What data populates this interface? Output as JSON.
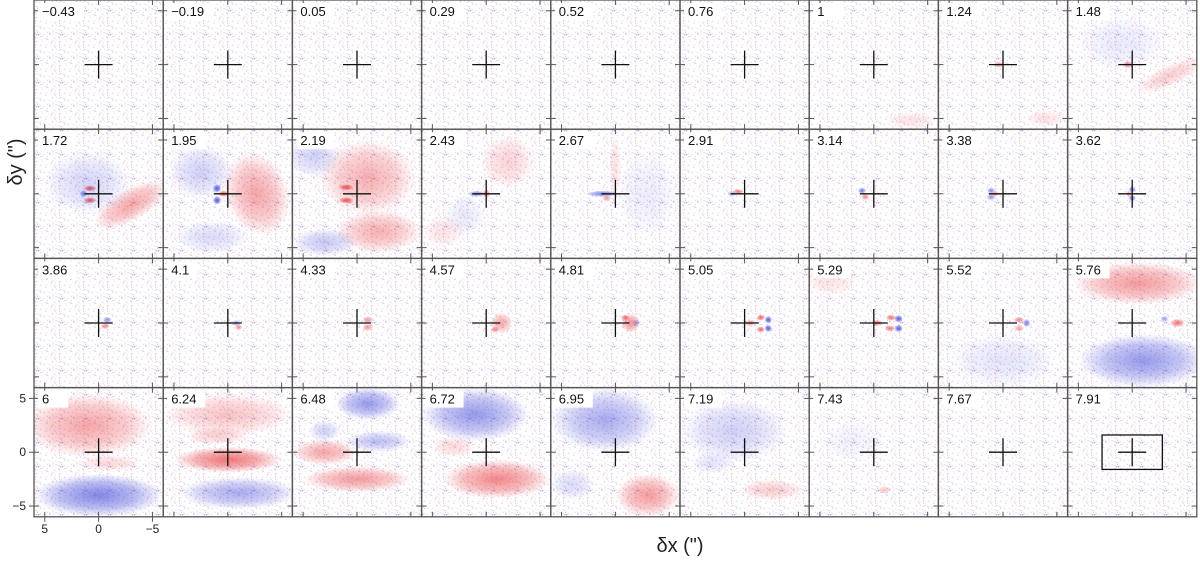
{
  "chart_data": {
    "type": "heatmap",
    "title": "",
    "description_units": "channel-map grid of residual panels",
    "rows": 4,
    "cols": 9,
    "xlabel": "δx (\")",
    "ylabel": "δy (\")",
    "xlim": [
      6,
      -6
    ],
    "ylim": [
      -6,
      6
    ],
    "x_ticks": [
      5,
      0,
      -5
    ],
    "x_tick_labels": [
      "5",
      "0",
      "−5"
    ],
    "y_ticks": [
      5,
      0,
      -5
    ],
    "y_tick_labels": [
      "5",
      "0",
      "−5"
    ],
    "colormap": {
      "positive": "#e8383c",
      "negative": "#3f46d8",
      "zero": "#ffffff"
    },
    "panel_labels": [
      "−0.43",
      "−0.19",
      "0.05",
      "0.29",
      "0.52",
      "0.76",
      "1",
      "1.24",
      "1.48",
      "1.72",
      "1.95",
      "2.19",
      "2.43",
      "2.67",
      "2.91",
      "3.14",
      "3.38",
      "3.62",
      "3.86",
      "4.1",
      "4.33",
      "4.57",
      "4.81",
      "5.05",
      "5.29",
      "5.52",
      "5.76",
      "6",
      "6.24",
      "6.48",
      "6.72",
      "6.95",
      "7.19",
      "7.43",
      "7.67",
      "7.91"
    ],
    "panel_values": [
      -0.43,
      -0.19,
      0.05,
      0.29,
      0.52,
      0.76,
      1,
      1.24,
      1.48,
      1.72,
      1.95,
      2.19,
      2.43,
      2.67,
      2.91,
      3.14,
      3.38,
      3.62,
      3.86,
      4.1,
      4.33,
      4.57,
      4.81,
      5.05,
      5.29,
      5.52,
      5.76,
      6,
      6.24,
      6.48,
      6.72,
      6.95,
      7.19,
      7.43,
      7.67,
      7.91
    ],
    "center_marker": {
      "x": 0,
      "y": 0,
      "half_length": 1.3
    },
    "beam_box": {
      "x_range": [
        2.8,
        -2.8
      ],
      "y_range": [
        -1.6,
        1.6
      ]
    },
    "blobs": [
      [],
      [],
      [],
      [],
      [],
      [],
      [
        {
          "x": -3.5,
          "y": -5.2,
          "rx": 2.5,
          "ry": 0.8,
          "a": 0.15
        }
      ],
      [
        {
          "x": 0.4,
          "y": 0,
          "rx": 0.5,
          "ry": 0.3,
          "a": 0.55
        },
        {
          "x": -4,
          "y": -5,
          "rx": 2,
          "ry": 0.8,
          "a": 0.15
        }
      ],
      [
        {
          "x": 0.4,
          "y": 0,
          "rx": 0.5,
          "ry": 0.35,
          "a": 0.6
        },
        {
          "x": -3.5,
          "y": -1,
          "rx": 3.5,
          "ry": 1,
          "a": 0.25,
          "rot": -25
        },
        {
          "x": 1,
          "y": 2,
          "rx": 4,
          "ry": 2.5,
          "a": -0.12
        }
      ],
      [
        {
          "x": 0.8,
          "y": 0.5,
          "rx": 0.6,
          "ry": 0.3,
          "a": 0.9
        },
        {
          "x": 0.8,
          "y": -0.6,
          "rx": 0.6,
          "ry": 0.3,
          "a": 0.9
        },
        {
          "x": 1.4,
          "y": 0,
          "rx": 0.35,
          "ry": 0.35,
          "a": -0.7
        },
        {
          "x": -3,
          "y": -1,
          "rx": 3.8,
          "ry": 1.5,
          "a": 0.45,
          "rot": -30
        },
        {
          "x": 1,
          "y": 1,
          "rx": 4,
          "ry": 3,
          "a": -0.22
        }
      ],
      [
        {
          "x": 1,
          "y": 0.5,
          "rx": 0.4,
          "ry": 0.4,
          "a": -0.9
        },
        {
          "x": 1,
          "y": -0.6,
          "rx": 0.4,
          "ry": 0.4,
          "a": -0.9
        },
        {
          "x": 0.4,
          "y": 0,
          "rx": 0.5,
          "ry": 0.3,
          "a": 0.8
        },
        {
          "x": -2.7,
          "y": 0,
          "rx": 3,
          "ry": 4,
          "a": 0.45,
          "rot": -20
        },
        {
          "x": 2.5,
          "y": 2,
          "rx": 3,
          "ry": 2.5,
          "a": -0.25
        },
        {
          "x": 1.5,
          "y": -4,
          "rx": 3.5,
          "ry": 1.5,
          "a": -0.2
        }
      ],
      [
        {
          "x": 1,
          "y": 0.6,
          "rx": 0.7,
          "ry": 0.3,
          "a": 0.85
        },
        {
          "x": 1,
          "y": -0.6,
          "rx": 0.7,
          "ry": 0.3,
          "a": 0.85
        },
        {
          "x": -1,
          "y": 1.5,
          "rx": 4.5,
          "ry": 3.5,
          "a": 0.4
        },
        {
          "x": -2,
          "y": -3.5,
          "rx": 4,
          "ry": 2,
          "a": 0.4
        },
        {
          "x": 4,
          "y": 3.5,
          "rx": 2.5,
          "ry": 2,
          "a": -0.25
        },
        {
          "x": 3,
          "y": -4.5,
          "rx": 3,
          "ry": 1.3,
          "a": -0.3
        }
      ],
      [
        {
          "x": 0.9,
          "y": 0,
          "rx": 0.8,
          "ry": 0.3,
          "a": -0.6
        },
        {
          "x": 0,
          "y": 0,
          "rx": 0.4,
          "ry": 0.4,
          "a": 0.6
        },
        {
          "x": -2,
          "y": 3,
          "rx": 2.5,
          "ry": 2.5,
          "a": 0.22
        },
        {
          "x": 4,
          "y": -3.5,
          "rx": 2,
          "ry": 1.5,
          "a": 0.15
        },
        {
          "x": 2,
          "y": -2,
          "rx": 2,
          "ry": 2,
          "a": -0.12
        }
      ],
      [
        {
          "x": 1.2,
          "y": 0,
          "rx": 1.5,
          "ry": 0.3,
          "a": -0.7
        },
        {
          "x": 0.8,
          "y": -0.4,
          "rx": 0.4,
          "ry": 0.3,
          "a": 0.5
        },
        {
          "x": 0,
          "y": 2.5,
          "rx": 0.6,
          "ry": 3,
          "a": 0.15
        },
        {
          "x": -3,
          "y": 0,
          "rx": 3,
          "ry": 4,
          "a": -0.1
        }
      ],
      [
        {
          "x": 0.6,
          "y": 0.2,
          "rx": 0.5,
          "ry": 0.25,
          "a": 0.7
        },
        {
          "x": 1.2,
          "y": 0,
          "rx": 0.4,
          "ry": 0.3,
          "a": -0.4
        }
      ],
      [
        {
          "x": 1.1,
          "y": 0.3,
          "rx": 0.4,
          "ry": 0.3,
          "a": -0.7
        },
        {
          "x": 0.8,
          "y": -0.3,
          "rx": 0.4,
          "ry": 0.3,
          "a": 0.6
        }
      ],
      [
        {
          "x": 1.1,
          "y": 0.3,
          "rx": 0.4,
          "ry": 0.3,
          "a": -0.6
        },
        {
          "x": 1.1,
          "y": -0.3,
          "rx": 0.4,
          "ry": 0.3,
          "a": -0.6
        },
        {
          "x": 0.7,
          "y": 0,
          "rx": 0.3,
          "ry": 0.3,
          "a": 0.5
        }
      ],
      [
        {
          "x": 0,
          "y": 0.4,
          "rx": 0.35,
          "ry": 0.3,
          "a": -0.7
        },
        {
          "x": 0,
          "y": -0.4,
          "rx": 0.35,
          "ry": 0.3,
          "a": -0.7
        },
        {
          "x": 0.3,
          "y": 0,
          "rx": 0.3,
          "ry": 0.3,
          "a": 0.5
        }
      ],
      [
        {
          "x": -0.8,
          "y": 0.3,
          "rx": 0.4,
          "ry": 0.3,
          "a": -0.6
        },
        {
          "x": -0.6,
          "y": -0.3,
          "rx": 0.4,
          "ry": 0.3,
          "a": 0.6
        }
      ],
      [
        {
          "x": -0.8,
          "y": 0,
          "rx": 0.4,
          "ry": 0.3,
          "a": -0.5
        },
        {
          "x": -1,
          "y": -0.4,
          "rx": 0.4,
          "ry": 0.3,
          "a": 0.5
        }
      ],
      [
        {
          "x": -1,
          "y": 0.3,
          "rx": 0.5,
          "ry": 0.35,
          "a": 0.5
        },
        {
          "x": -1,
          "y": -0.4,
          "rx": 0.5,
          "ry": 0.35,
          "a": 0.5
        }
      ],
      [
        {
          "x": -1.4,
          "y": 0,
          "rx": 1,
          "ry": 1,
          "a": 0.45
        },
        {
          "x": -0.8,
          "y": -0.6,
          "rx": 0.4,
          "ry": 0.3,
          "a": 0.6
        }
      ],
      [
        {
          "x": -1.4,
          "y": 0,
          "rx": 0.9,
          "ry": 0.9,
          "a": 0.55
        },
        {
          "x": -1.9,
          "y": 0,
          "rx": 0.35,
          "ry": 0.35,
          "a": -0.4
        },
        {
          "x": -0.9,
          "y": 0.5,
          "rx": 0.4,
          "ry": 0.3,
          "a": 0.7
        }
      ],
      [
        {
          "x": -1.5,
          "y": 0.5,
          "rx": 0.4,
          "ry": 0.3,
          "a": 0.8
        },
        {
          "x": -1.5,
          "y": -0.6,
          "rx": 0.4,
          "ry": 0.3,
          "a": 0.8
        },
        {
          "x": -2.2,
          "y": 0.3,
          "rx": 0.35,
          "ry": 0.35,
          "a": -0.9
        },
        {
          "x": -2.2,
          "y": -0.5,
          "rx": 0.35,
          "ry": 0.35,
          "a": -0.9
        },
        {
          "x": -0.5,
          "y": 0,
          "rx": 0.5,
          "ry": 0.3,
          "a": 0.6
        }
      ],
      [
        {
          "x": -1.6,
          "y": 0.5,
          "rx": 0.5,
          "ry": 0.3,
          "a": 0.7
        },
        {
          "x": -1.5,
          "y": -0.5,
          "rx": 0.5,
          "ry": 0.3,
          "a": 0.7
        },
        {
          "x": -2.3,
          "y": 0.4,
          "rx": 0.4,
          "ry": 0.35,
          "a": -0.9
        },
        {
          "x": -2.3,
          "y": -0.5,
          "rx": 0.4,
          "ry": 0.35,
          "a": -0.9
        },
        {
          "x": -0.3,
          "y": 0,
          "rx": 0.5,
          "ry": 0.3,
          "a": 0.7
        },
        {
          "x": 4,
          "y": 4,
          "rx": 2.5,
          "ry": 1.5,
          "a": 0.15
        }
      ],
      [
        {
          "x": -1.5,
          "y": 0.3,
          "rx": 0.5,
          "ry": 0.3,
          "a": 0.6
        },
        {
          "x": -1.5,
          "y": -0.5,
          "rx": 0.5,
          "ry": 0.3,
          "a": 0.5
        },
        {
          "x": -2.2,
          "y": 0,
          "rx": 0.35,
          "ry": 0.4,
          "a": -0.7
        },
        {
          "x": 0,
          "y": -3.5,
          "rx": 5,
          "ry": 2.5,
          "a": -0.15
        }
      ],
      [
        {
          "x": -0.5,
          "y": 3.7,
          "rx": 6,
          "ry": 2,
          "a": 0.5
        },
        {
          "x": -1,
          "y": -3.5,
          "rx": 6,
          "ry": 2.5,
          "a": -0.55
        },
        {
          "x": -4.2,
          "y": 0,
          "rx": 0.7,
          "ry": 0.4,
          "a": 0.7
        },
        {
          "x": -3,
          "y": 0.4,
          "rx": 0.4,
          "ry": 0.3,
          "a": -0.5
        }
      ],
      [
        {
          "x": 1,
          "y": 2.5,
          "rx": 6,
          "ry": 3,
          "a": 0.45
        },
        {
          "x": 0,
          "y": -4,
          "rx": 6,
          "ry": 2,
          "a": -0.65
        },
        {
          "x": -1,
          "y": -1,
          "rx": 3,
          "ry": 0.8,
          "a": 0.2
        }
      ],
      [
        {
          "x": 0,
          "y": 3.5,
          "rx": 6,
          "ry": 2,
          "a": 0.3
        },
        {
          "x": 0,
          "y": -0.7,
          "rx": 5,
          "ry": 1.2,
          "a": 0.7
        },
        {
          "x": -1,
          "y": -3.8,
          "rx": 5.5,
          "ry": 1.5,
          "a": -0.45
        },
        {
          "x": 1,
          "y": 1.5,
          "rx": 3,
          "ry": 0.8,
          "a": 0.25
        }
      ],
      [
        {
          "x": -1,
          "y": 4.5,
          "rx": 3,
          "ry": 1.5,
          "a": -0.55
        },
        {
          "x": -2,
          "y": 1,
          "rx": 3,
          "ry": 1,
          "a": -0.35
        },
        {
          "x": 3,
          "y": 0,
          "rx": 3,
          "ry": 1.2,
          "a": 0.45
        },
        {
          "x": 0,
          "y": -2.5,
          "rx": 5,
          "ry": 1.2,
          "a": 0.5
        },
        {
          "x": 3,
          "y": 2,
          "rx": 1.5,
          "ry": 1,
          "a": -0.25
        }
      ],
      [
        {
          "x": 1,
          "y": 3.5,
          "rx": 5,
          "ry": 2.5,
          "a": -0.55
        },
        {
          "x": -1,
          "y": -2.5,
          "rx": 5,
          "ry": 1.8,
          "a": 0.6
        },
        {
          "x": 3,
          "y": 0.5,
          "rx": 2,
          "ry": 1,
          "a": 0.2
        }
      ],
      [
        {
          "x": 1,
          "y": 3,
          "rx": 5,
          "ry": 3,
          "a": -0.45
        },
        {
          "x": -3,
          "y": -4,
          "rx": 3,
          "ry": 2,
          "a": 0.5
        },
        {
          "x": 4,
          "y": -3,
          "rx": 2,
          "ry": 1.5,
          "a": -0.2
        }
      ],
      [
        {
          "x": 1,
          "y": 2,
          "rx": 5,
          "ry": 3,
          "a": -0.25
        },
        {
          "x": -2.5,
          "y": -3.5,
          "rx": 3,
          "ry": 1,
          "a": 0.25
        },
        {
          "x": 3,
          "y": -1,
          "rx": 2,
          "ry": 1,
          "a": -0.15
        }
      ],
      [
        {
          "x": -1,
          "y": -3.5,
          "rx": 0.6,
          "ry": 0.4,
          "a": 0.3
        },
        {
          "x": 2,
          "y": 1,
          "rx": 3,
          "ry": 2,
          "a": -0.08
        }
      ],
      [],
      []
    ]
  }
}
